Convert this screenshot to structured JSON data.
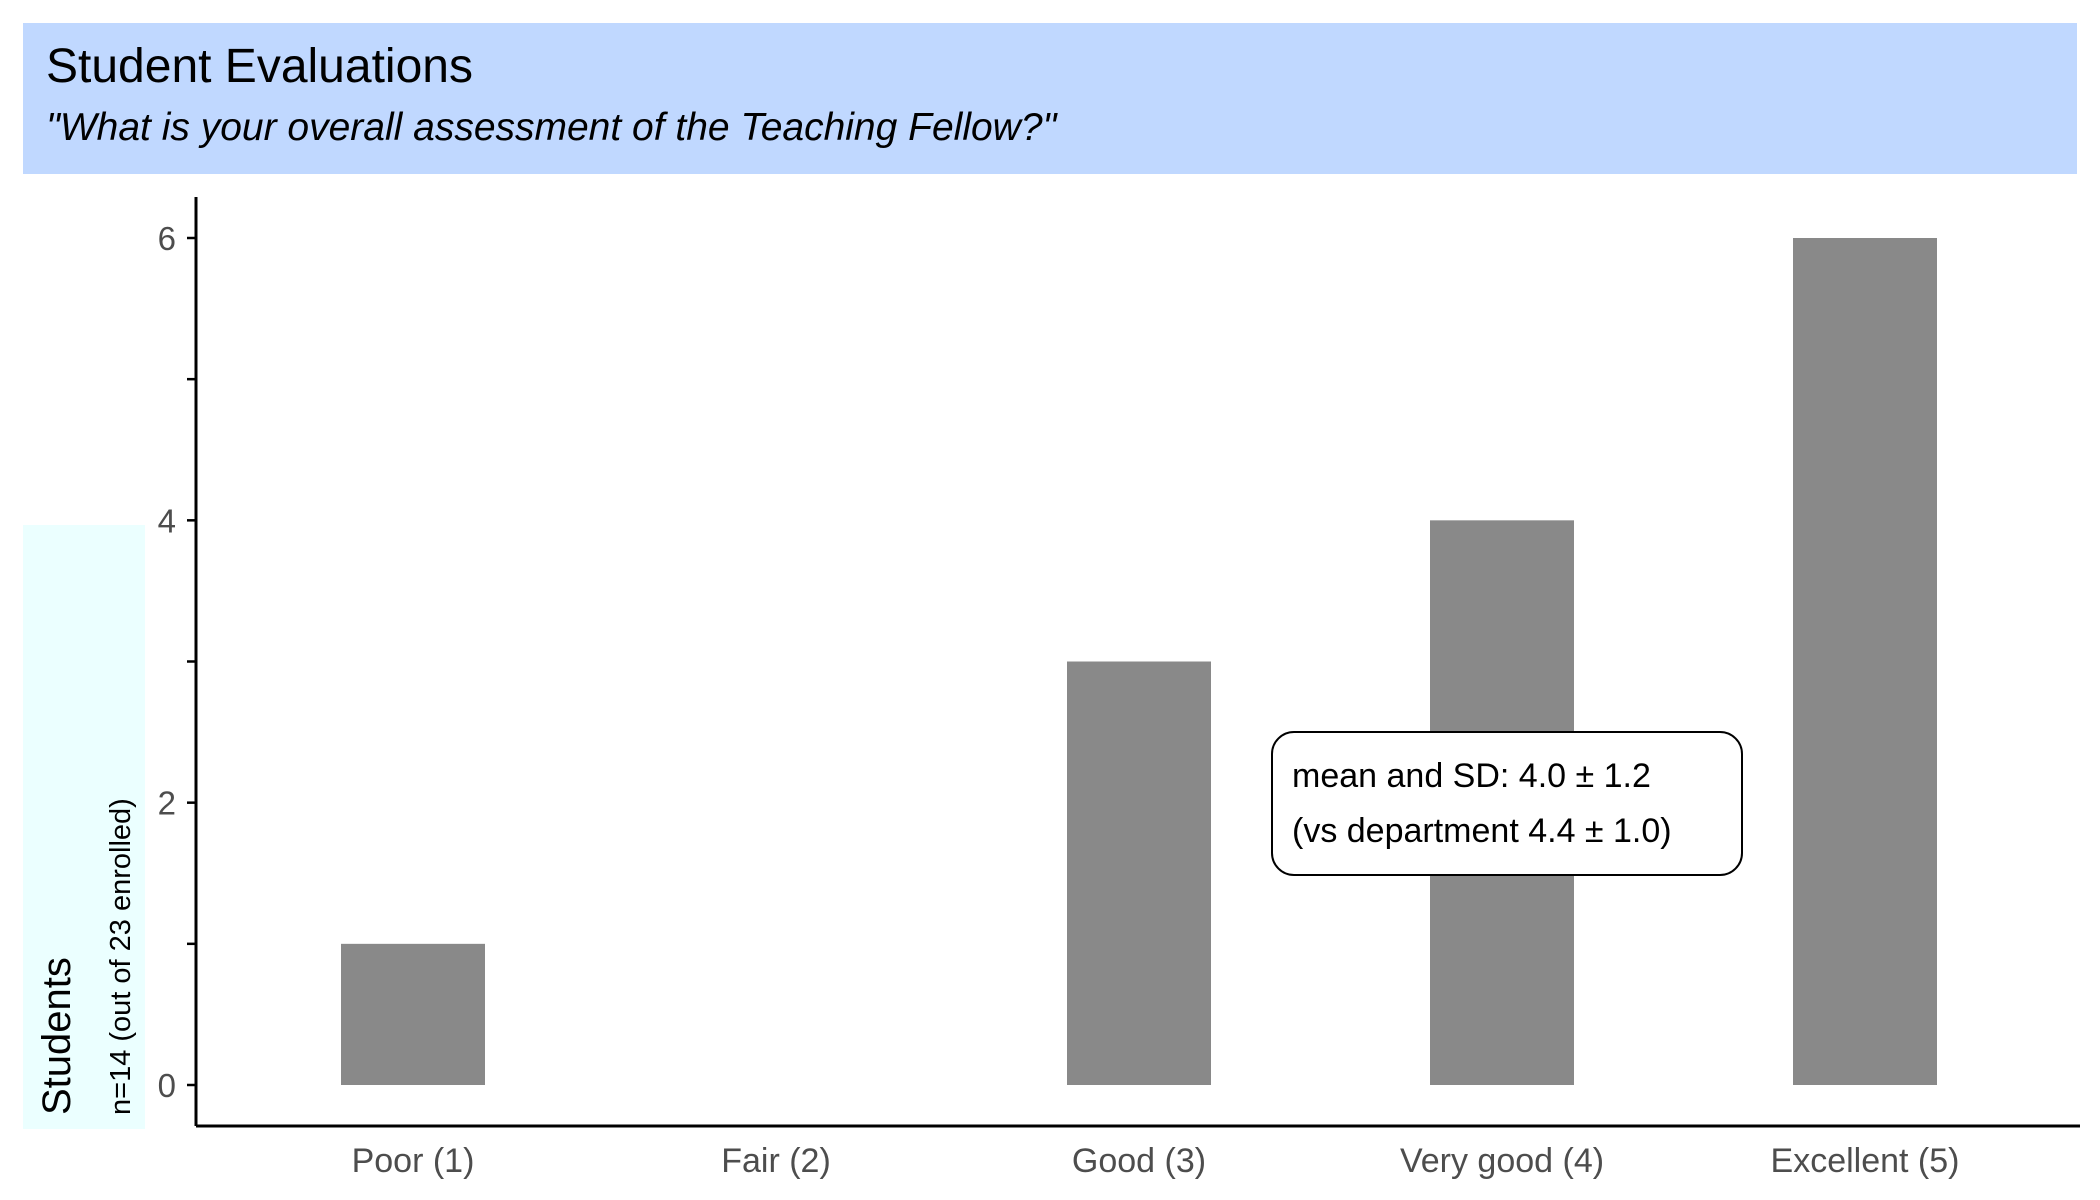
{
  "header": {
    "title": "Student Evaluations",
    "subtitle": "\"What is your overall assessment of the Teaching Fellow?\""
  },
  "colors": {
    "header_bg": "#c0d8ff",
    "ylabel_bg": "#ebffff",
    "bar": "#898989",
    "axis": "#000000",
    "tick_text": "#4d4d4d"
  },
  "chart_data": {
    "type": "bar",
    "categories": [
      "Poor (1)",
      "Fair (2)",
      "Good (3)",
      "Very good (4)",
      "Excellent (5)"
    ],
    "values": [
      1,
      0,
      3,
      4,
      6
    ],
    "title": "Student Evaluations",
    "subtitle": "\"What is your overall assessment of the Teaching Fellow?\"",
    "ylabel": "Students",
    "ylabel_sub": "n=14 (out of 23 enrolled)",
    "xlabel": "",
    "ylim": [
      0,
      6.3
    ],
    "yticks": [
      0,
      2,
      4,
      6
    ],
    "grid": false,
    "annotation": {
      "line1": "mean and SD: 4.0 ± 1.2",
      "line2": "(vs department 4.4 ± 1.0)"
    }
  }
}
